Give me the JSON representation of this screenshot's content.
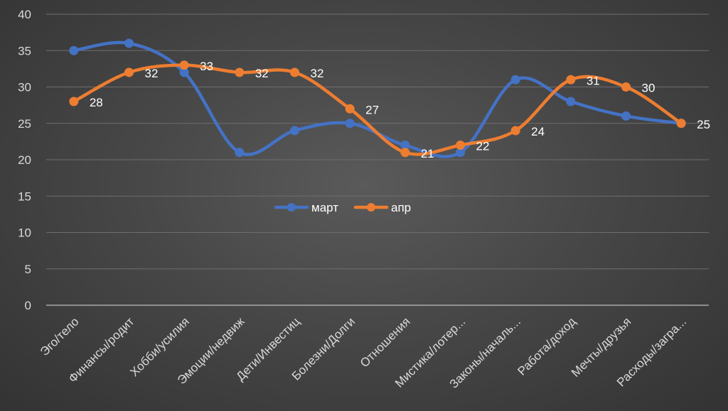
{
  "chart_data": {
    "type": "line",
    "title": "",
    "xlabel": "",
    "ylabel": "",
    "ylim": [
      0,
      40
    ],
    "yticks": [
      0,
      5,
      10,
      15,
      20,
      25,
      30,
      35,
      40
    ],
    "grid": true,
    "legend_position": "center",
    "categories": [
      "Эго/тело",
      "Финансы/родит",
      "Хобби/усилия",
      "Эмоции/недвиж",
      "Дети/Инвестиц",
      "Болезни/Долги",
      "Отношения",
      "Мистика/лотер...",
      "Законы/началь...",
      "Работа/доход",
      "Мечты/друзья",
      "Расходы/загра..."
    ],
    "series": [
      {
        "name": "март",
        "color": "#4472C4",
        "values": [
          35,
          36,
          32,
          21,
          24,
          25,
          22,
          21,
          31,
          28,
          26,
          25
        ],
        "data_labels": false
      },
      {
        "name": "апр",
        "color": "#ED7D31",
        "values": [
          28,
          32,
          33,
          32,
          32,
          27,
          21,
          22,
          24,
          31,
          30,
          25
        ],
        "data_labels": true
      }
    ]
  }
}
